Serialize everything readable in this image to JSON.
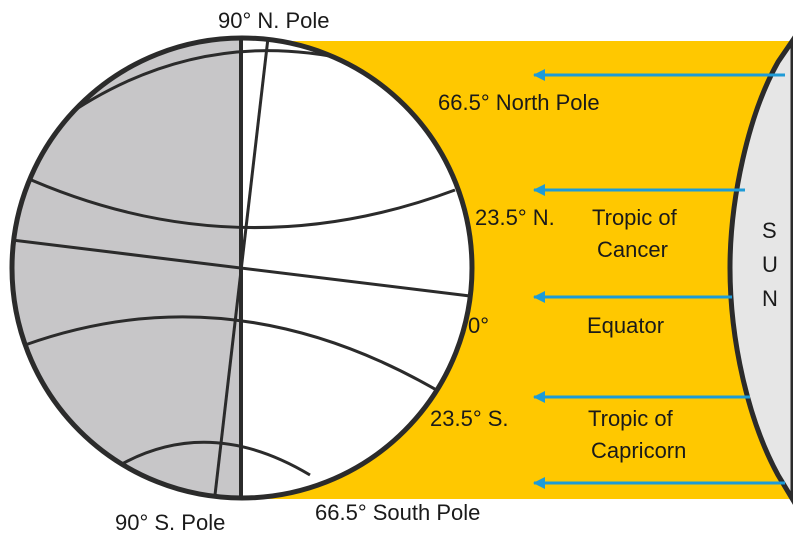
{
  "diagram": {
    "labels": {
      "north_pole": "90° N. Pole",
      "south_pole": "90°  S. Pole",
      "arctic": "66.5° North Pole",
      "antarctic": "66.5°  South Pole",
      "cancer_lat": "23.5° N.",
      "cancer_name_1": "Tropic of",
      "cancer_name_2": "Cancer",
      "equator_lat": "0°",
      "equator_name": "Equator",
      "capricorn_lat": "23.5° S.",
      "capricorn_name_1": "Tropic of",
      "capricorn_name_2": "Capricorn",
      "sun_letters": [
        "S",
        "U",
        "N"
      ]
    },
    "colors": {
      "sunlight": "#FFC800",
      "night": "#C7C6C8",
      "day": "#FFFFFF",
      "rays": "#1E9BD7",
      "sun": "#E6E6E6",
      "outline": "#2b2b2b"
    }
  }
}
